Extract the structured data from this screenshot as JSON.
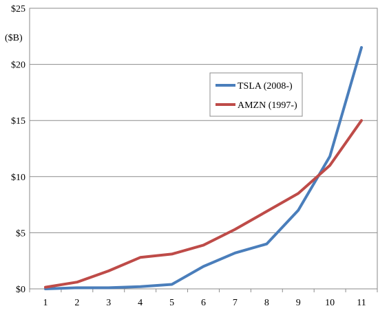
{
  "chart_data": {
    "type": "line",
    "title": "",
    "xlabel": "",
    "ylabel": "",
    "unit_label": "($B)",
    "x": [
      1,
      2,
      3,
      4,
      5,
      6,
      7,
      8,
      9,
      10,
      11
    ],
    "x_tick_labels": [
      "1",
      "2",
      "3",
      "4",
      "5",
      "6",
      "7",
      "8",
      "9",
      "10",
      "11"
    ],
    "ylim": [
      0,
      25
    ],
    "y_ticks": [
      0,
      5,
      10,
      15,
      20,
      25
    ],
    "y_tick_labels": [
      "$0",
      "$5",
      "$10",
      "$15",
      "$20",
      "$25"
    ],
    "grid": "horizontal",
    "legend_position": "center-right",
    "series": [
      {
        "name": "TSLA (2008-)",
        "color": "#4a7ebb",
        "values": [
          0.0,
          0.1,
          0.1,
          0.2,
          0.4,
          2.0,
          3.2,
          4.0,
          7.0,
          11.8,
          21.5
        ]
      },
      {
        "name": "AMZN (1997-)",
        "color": "#be4b48",
        "values": [
          0.15,
          0.6,
          1.6,
          2.8,
          3.1,
          3.9,
          5.3,
          6.9,
          8.5,
          11.0,
          15.0
        ]
      }
    ]
  }
}
